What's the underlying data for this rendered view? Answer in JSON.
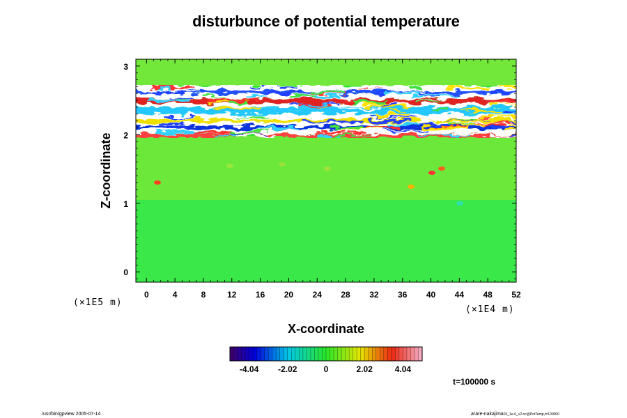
{
  "chart_data": {
    "type": "heatmap",
    "title": "disturbunce of potential temperature",
    "xlabel": "X-coordinate",
    "ylabel": "Z-coordinate",
    "xlim": [
      -1.5,
      52
    ],
    "ylim": [
      -0.15,
      3.1
    ],
    "x_ticks": [
      "0",
      "4",
      "8",
      "12",
      "16",
      "20",
      "24",
      "28",
      "32",
      "36",
      "40",
      "44",
      "48",
      "52"
    ],
    "y_ticks": [
      "0",
      "1",
      "2",
      "3"
    ],
    "x_unit": "(×1E4 m)",
    "y_unit": "(×1E5 m)",
    "colorbar": {
      "vmin": -5.05,
      "vmax": 5.05,
      "ticks": [
        "-4.04",
        "-2.02",
        "0",
        "2.02",
        "4.04"
      ],
      "n_levels": 50
    },
    "bands": [
      {
        "z_from": -0.15,
        "z_to": 1.1,
        "value": 0.35
      },
      {
        "z_from": 1.1,
        "z_to": 1.95,
        "value": 0.85
      },
      {
        "z_from": 1.95,
        "z_to": 2.7,
        "value": "saturated alternating +/- layers"
      },
      {
        "z_from": 2.7,
        "z_to": 3.1,
        "value": 0.6
      }
    ],
    "time_label": "t=100000 s"
  },
  "footer": {
    "left": "/usr/bin/gpview 2005-07-14",
    "right": "arare-nakajima",
    "right_sub": "03_1e-6_v2.nc@PotTemp,t=100000"
  }
}
